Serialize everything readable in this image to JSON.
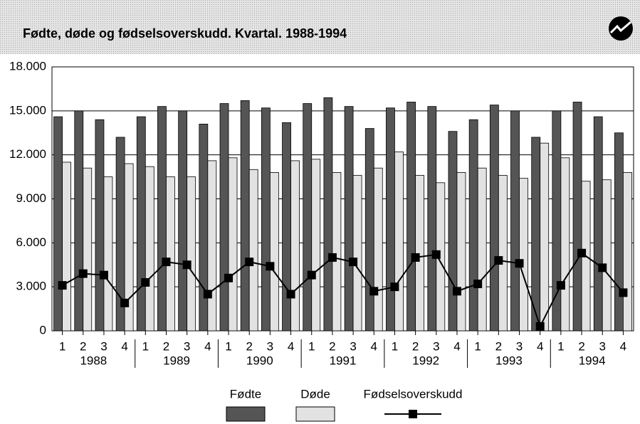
{
  "chart_data": {
    "type": "bar",
    "title": "Fødte, døde og fødselsoverskudd. Kvartal. 1988-1994",
    "categories": [
      "1",
      "2",
      "3",
      "4",
      "1",
      "2",
      "3",
      "4",
      "1",
      "2",
      "3",
      "4",
      "1",
      "2",
      "3",
      "4",
      "1",
      "2",
      "3",
      "4",
      "1",
      "2",
      "3",
      "4",
      "1",
      "2",
      "3",
      "4"
    ],
    "years": [
      "1988",
      "1989",
      "1990",
      "1991",
      "1992",
      "1993",
      "1994"
    ],
    "series": [
      {
        "name": "Fødte",
        "color": "#555555",
        "type": "bar",
        "values": [
          14600,
          15000,
          14400,
          13200,
          14600,
          15300,
          15000,
          14100,
          15500,
          15700,
          15200,
          14200,
          15500,
          15900,
          15300,
          13800,
          15200,
          15600,
          15300,
          13600,
          14400,
          15400,
          15000,
          13200,
          15000,
          15600,
          14600,
          13500
        ]
      },
      {
        "name": "Døde",
        "color": "#e2e2e2",
        "type": "bar",
        "values": [
          11500,
          11100,
          10500,
          11400,
          11200,
          10500,
          10500,
          11600,
          11800,
          11000,
          10800,
          11600,
          11700,
          10800,
          10600,
          11100,
          12200,
          10600,
          10100,
          10800,
          11100,
          10600,
          10400,
          12800,
          11800,
          10200,
          10300,
          10800
        ]
      },
      {
        "name": "Fødselsoverskudd",
        "color": "#000000",
        "type": "line",
        "values": [
          3100,
          3900,
          3800,
          1900,
          3300,
          4700,
          4500,
          2500,
          3600,
          4700,
          4400,
          2500,
          3800,
          5000,
          4700,
          2700,
          3000,
          5000,
          5200,
          2700,
          3200,
          4800,
          4600,
          300,
          3100,
          5300,
          4300,
          2600
        ]
      }
    ],
    "ylim": [
      0,
      18000
    ],
    "yticks": [
      0,
      {
        "value": 3000,
        "label": "3.000"
      },
      {
        "value": 6000,
        "label": "6.000"
      },
      {
        "value": 9000,
        "label": "9.000"
      },
      {
        "value": 12000,
        "label": "12.000"
      },
      {
        "value": 15000,
        "label": "15.000"
      },
      {
        "value": 18000,
        "label": "18.000"
      }
    ],
    "grid": true
  }
}
